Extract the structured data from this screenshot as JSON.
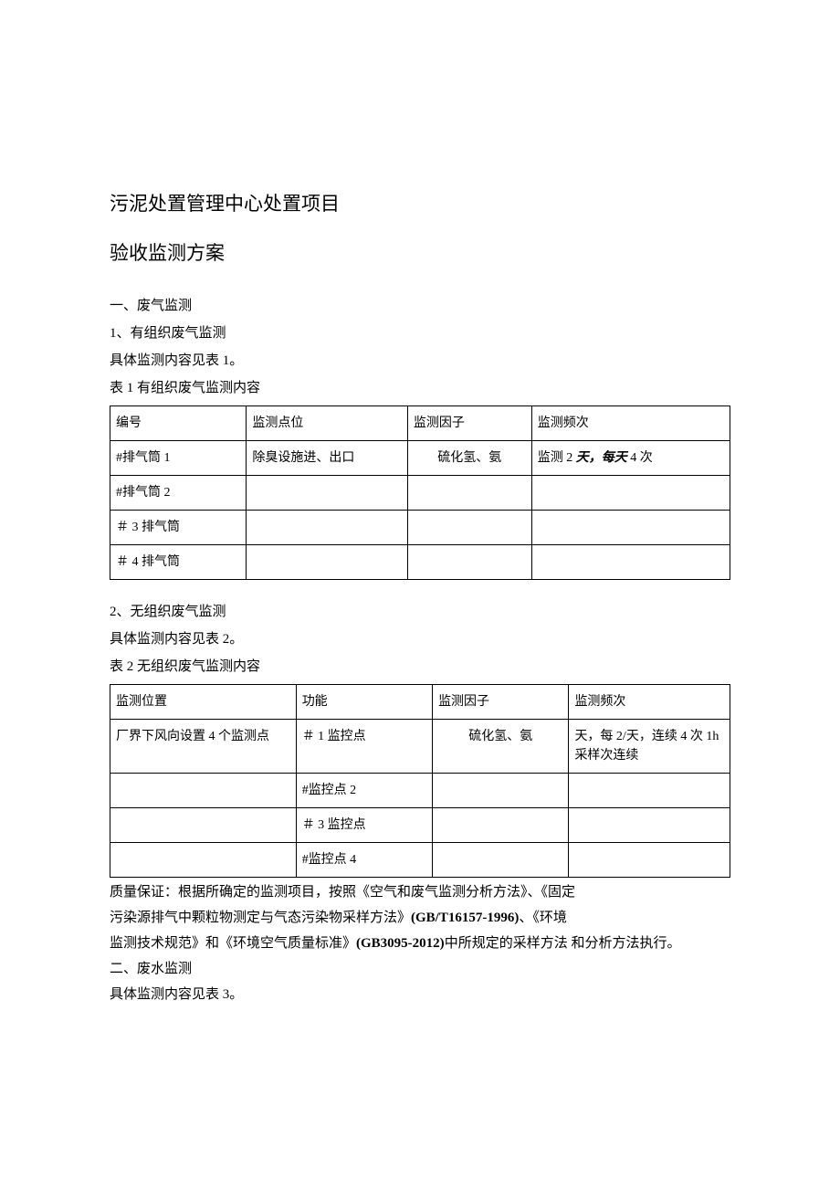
{
  "titles": {
    "main1": "污泥处置管理中心处置项目",
    "main2": "验收监测方案"
  },
  "s1": {
    "h": "一、废气监测",
    "p1": "1、有组织废气监测",
    "p2": "具体监测内容见表 1。",
    "p3": "表 1 有组织废气监测内容"
  },
  "t1": {
    "h0a": "",
    "h0b": "编号",
    "h1": "监测点位",
    "h2": "监测因子",
    "h3": "监测频次",
    "r1c0": "#排气筒 1",
    "r1c1": "除臭设施进、出口",
    "r1c2": "硫化氢、氨",
    "r1c3a": "监测 2 ",
    "r1c3b": "天，每天",
    "r1c3c": " 4 次",
    "r2c0": "#排气筒 2",
    "r3c0": "＃ 3 排气筒",
    "r4c0": "＃ 4 排气筒"
  },
  "s2": {
    "p1": "2、无组织废气监测",
    "p2": "具体监测内容见表 2。",
    "p3": "表 2 无组织废气监测内容"
  },
  "t2": {
    "h0": "监测位置",
    "h1": "功能",
    "h2": "监测因子",
    "h3": "监测频次",
    "r1c0": "厂界下风向设置 4 个监测点",
    "r1c1": "＃ 1 监控点",
    "r1c2": "硫化氢、氨",
    "r1c3": "天，每 2/天，连续 4 次 1h 采样次连续",
    "r2c1": "#监控点 2",
    "r3c1": "＃ 3 监控点",
    "r4c1": "#监控点 4"
  },
  "qa": {
    "l1": "质量保证：根据所确定的监测项目，按照《空气和废气监测分析方法》、《固定",
    "l2a": " 污染源排气中颗粒物测定与气态污染物采样方法》",
    "l2b": "(GB/T16157-1996)",
    "l2c": "、《环境",
    "l3a": " 监测技术规范》和《环境空气质量标准》",
    "l3b": "(GB3095-2012)",
    "l3c": "中所规定的采样方法 和分析方法执行。"
  },
  "s3": {
    "h": "二、废水监测",
    "p1": "具体监测内容见表 3。"
  }
}
